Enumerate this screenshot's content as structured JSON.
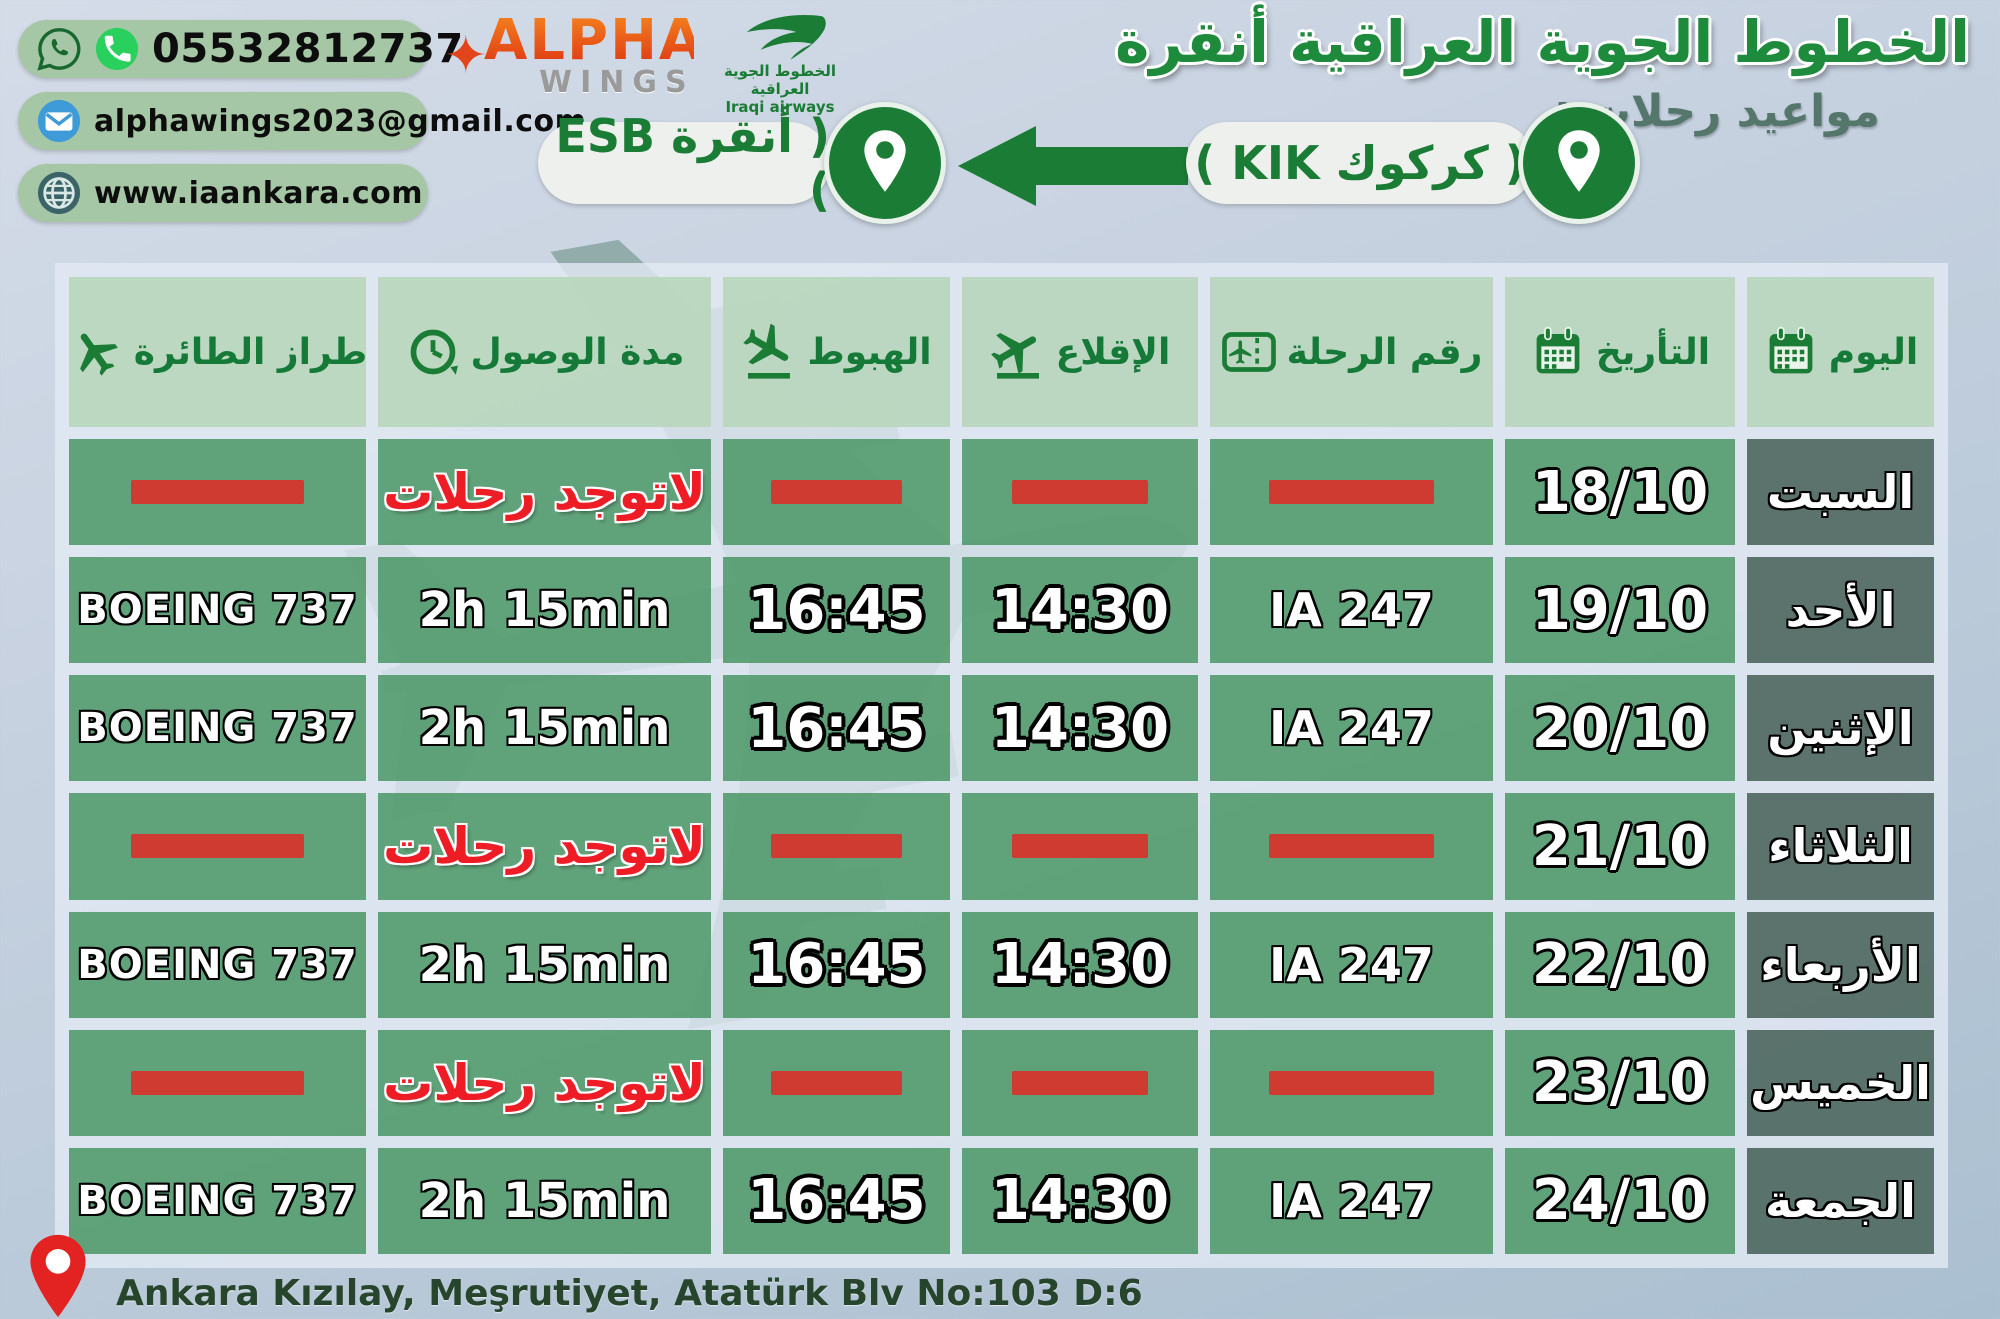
{
  "contact": {
    "phone": "05532812737",
    "email": "alphawings2023@gmail.com",
    "website": "www.iaankara.com"
  },
  "logos": {
    "alpha_line1": "ALPHA",
    "alpha_line2": "WINGS",
    "iraqi_ar": "الخطوط الجوية العراقية",
    "iraqi_en": "Iraqi airways"
  },
  "header": {
    "title": "الخطوط الجوية العراقية أنقرة",
    "subtitle": "مواعيد رحلات :"
  },
  "route": {
    "from_label": "( كركوك KIK )",
    "to_label": "( أنقرة ESB )"
  },
  "table": {
    "no_flights_label": "لاتوجد رحلات",
    "columns": [
      {
        "key": "aircraft",
        "label": "طراز الطائرة",
        "icon": "plane-icon"
      },
      {
        "key": "duration",
        "label": "مدة الوصول",
        "icon": "clock-icon"
      },
      {
        "key": "landing",
        "label": "الهبوط",
        "icon": "plane-landing-icon"
      },
      {
        "key": "takeoff",
        "label": "الإقلاع",
        "icon": "plane-takeoff-icon"
      },
      {
        "key": "flight_no",
        "label": "رقم الرحلة",
        "icon": "ticket-icon"
      },
      {
        "key": "date",
        "label": "التأريخ",
        "icon": "calendar-icon"
      },
      {
        "key": "day",
        "label": "اليوم",
        "icon": "calendar-icon"
      }
    ],
    "rows": [
      {
        "day": "السبت",
        "date": "18/10",
        "no_flights": true
      },
      {
        "day": "الأحد",
        "date": "19/10",
        "no_flights": false,
        "flight_no": "IA 247",
        "takeoff": "14:30",
        "landing": "16:45",
        "duration": "2h 15min",
        "aircraft": "BOEING 737"
      },
      {
        "day": "الإثنين",
        "date": "20/10",
        "no_flights": false,
        "flight_no": "IA 247",
        "takeoff": "14:30",
        "landing": "16:45",
        "duration": "2h 15min",
        "aircraft": "BOEING 737"
      },
      {
        "day": "الثلاثاء",
        "date": "21/10",
        "no_flights": true
      },
      {
        "day": "الأربعاء",
        "date": "22/10",
        "no_flights": false,
        "flight_no": "IA 247",
        "takeoff": "14:30",
        "landing": "16:45",
        "duration": "2h 15min",
        "aircraft": "BOEING 737"
      },
      {
        "day": "الخميس",
        "date": "23/10",
        "no_flights": true
      },
      {
        "day": "الجمعة",
        "date": "24/10",
        "no_flights": false,
        "flight_no": "IA 247",
        "takeoff": "14:30",
        "landing": "16:45",
        "duration": "2h 15min",
        "aircraft": "BOEING 737"
      }
    ]
  },
  "footer": {
    "address": "Ankara Kızılay, Meşrutiyet, Atatürk Blv No:103 D:6"
  },
  "colors": {
    "brand_green": "#1b7c35",
    "cell_green": "#55a072",
    "day_cell_green": "#5c7b71",
    "header_cell_green": "#b9d6bd",
    "no_flight_red": "#ee1c25",
    "dash_red": "#cf3a31",
    "whatsapp_green": "#2ad05e",
    "email_blue": "#3f9bd8"
  }
}
